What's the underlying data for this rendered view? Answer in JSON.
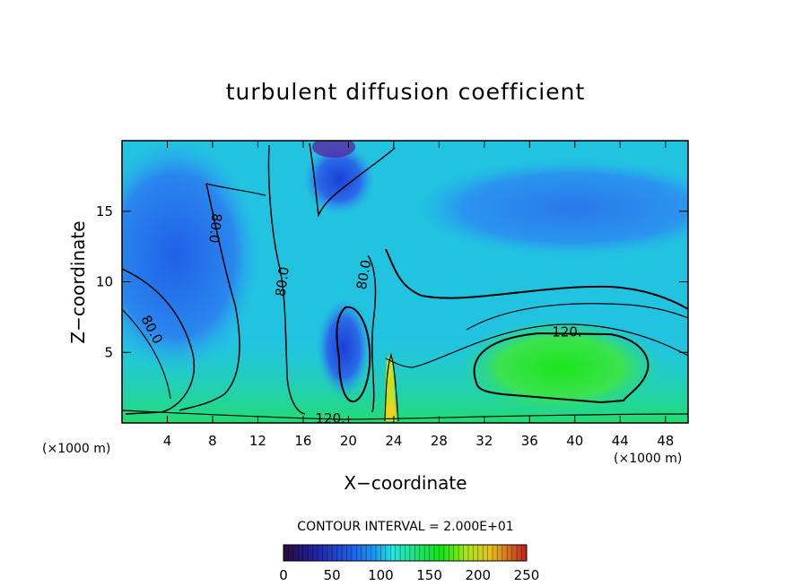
{
  "chart_data": {
    "type": "heatmap",
    "title": "turbulent diffusion coefficient",
    "xlabel": "X−coordinate",
    "ylabel": "Z−coordinate",
    "x_unit_left": "(×1000 m)",
    "x_unit_right": "(×1000 m)",
    "xlim": [
      0,
      50
    ],
    "ylim": [
      0,
      20
    ],
    "x_ticks": [
      4,
      8,
      12,
      16,
      20,
      24,
      28,
      32,
      36,
      40,
      44,
      48
    ],
    "y_ticks": [
      5,
      10,
      15
    ],
    "contour_interval_text": "CONTOUR INTERVAL = 2.000E+01",
    "contour_labels": [
      {
        "text": "80.0",
        "x": 8.2,
        "z": 13.8,
        "rot": 96
      },
      {
        "text": "80.0",
        "x": 14.2,
        "z": 10.0,
        "rot": -82
      },
      {
        "text": "80.0",
        "x": 21.4,
        "z": 10.5,
        "rot": -80
      },
      {
        "text": "80.0",
        "x": 2.6,
        "z": 6.6,
        "rot": 62
      },
      {
        "text": "120.",
        "x": 39.3,
        "z": 6.4,
        "rot": 0
      },
      {
        "text": "120.",
        "x": 18.4,
        "z": 0.3,
        "rot": 0
      }
    ],
    "colorbar": {
      "min": 0,
      "max": 250,
      "tick_labels": [
        "0",
        "50",
        "100",
        "150",
        "200",
        "250"
      ],
      "tick_values": [
        0,
        50,
        100,
        150,
        200,
        250
      ]
    },
    "grid": false,
    "legend": "colorbar-bottom"
  }
}
